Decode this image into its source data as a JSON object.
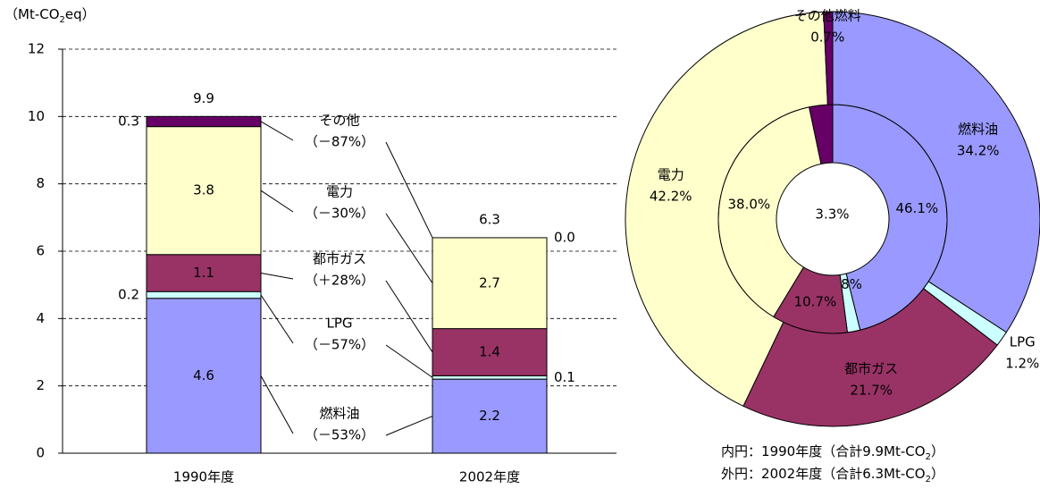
{
  "chart_data": [
    {
      "type": "bar",
      "stacked": true,
      "ylabel": [
        "（Mt-CO",
        "2",
        "eq）"
      ],
      "categories": [
        "1990年度",
        "2002年度"
      ],
      "ylim": [
        0,
        12
      ],
      "yticks": [
        0,
        2,
        4,
        6,
        8,
        10,
        12
      ],
      "grid": true,
      "totals": [
        9.9,
        6.3
      ],
      "series": [
        {
          "name": "燃料油",
          "change": "（－53%）",
          "color": "#9999ff",
          "values": [
            4.6,
            2.2
          ]
        },
        {
          "name": "LPG",
          "change": "（－57%）",
          "color": "#ccffff",
          "values": [
            0.2,
            0.1
          ]
        },
        {
          "name": "都市ガス",
          "change": "（＋28%）",
          "color": "#993366",
          "values": [
            1.1,
            1.4
          ]
        },
        {
          "name": "電力",
          "change": "（－30%）",
          "color": "#ffffcc",
          "values": [
            3.8,
            2.7
          ]
        },
        {
          "name": "その他",
          "change": "（－87%）",
          "color": "#660066",
          "values": [
            0.3,
            0.0
          ],
          "value_labels": [
            "0.3",
            "0.0"
          ]
        }
      ]
    },
    {
      "type": "donut",
      "categories": [
        "燃料油",
        "LPG",
        "都市ガス",
        "電力",
        "その他燃料"
      ],
      "colors": [
        "#9999ff",
        "#ccffff",
        "#993366",
        "#ffffcc",
        "#660066"
      ],
      "rings": [
        {
          "caption": [
            "内円：1990年度（合計9.9Mt-CO",
            "2",
            "）"
          ],
          "values": [
            46.1,
            1.8,
            10.7,
            38.0,
            3.3
          ],
          "value_labels": [
            "46.1%",
            "1.8%",
            "10.7%",
            "38.0%",
            "3.3%"
          ]
        },
        {
          "caption": [
            "外円：2002年度（合計6.3Mt-CO",
            "2",
            "）"
          ],
          "values": [
            34.2,
            1.2,
            21.7,
            42.2,
            0.7
          ],
          "value_labels": [
            "34.2%",
            "1.2%",
            "21.7%",
            "42.2%",
            "0.7%"
          ]
        }
      ]
    }
  ]
}
